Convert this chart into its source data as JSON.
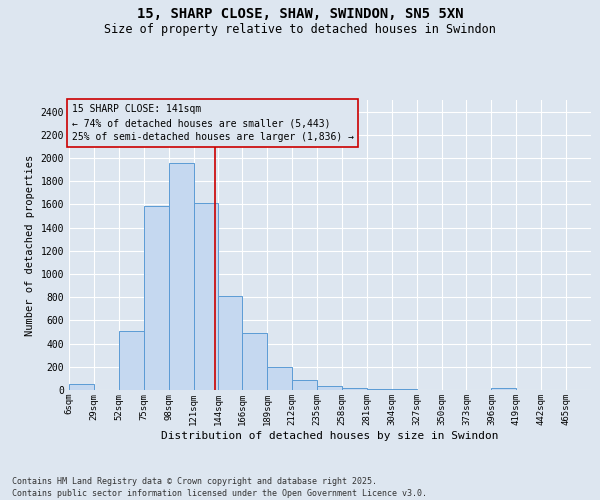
{
  "title": "15, SHARP CLOSE, SHAW, SWINDON, SN5 5XN",
  "subtitle": "Size of property relative to detached houses in Swindon",
  "xlabel": "Distribution of detached houses by size in Swindon",
  "ylabel": "Number of detached properties",
  "footer_line1": "Contains HM Land Registry data © Crown copyright and database right 2025.",
  "footer_line2": "Contains public sector information licensed under the Open Government Licence v3.0.",
  "annotation_line1": "15 SHARP CLOSE: 141sqm",
  "annotation_line2": "← 74% of detached houses are smaller (5,443)",
  "annotation_line3": "25% of semi-detached houses are larger (1,836) →",
  "marker_value": 141,
  "bar_color": "#c5d8f0",
  "bar_edge_color": "#5b9bd5",
  "marker_color": "#cc0000",
  "background_color": "#dde6f0",
  "categories": [
    "6sqm",
    "29sqm",
    "52sqm",
    "75sqm",
    "98sqm",
    "121sqm",
    "144sqm",
    "166sqm",
    "189sqm",
    "212sqm",
    "235sqm",
    "258sqm",
    "281sqm",
    "304sqm",
    "327sqm",
    "350sqm",
    "373sqm",
    "396sqm",
    "419sqm",
    "442sqm",
    "465sqm"
  ],
  "bin_edges": [
    6,
    29,
    52,
    75,
    98,
    121,
    144,
    166,
    189,
    212,
    235,
    258,
    281,
    304,
    327,
    350,
    373,
    396,
    419,
    442,
    465,
    488
  ],
  "values": [
    50,
    0,
    510,
    1590,
    1960,
    1610,
    810,
    490,
    200,
    85,
    35,
    20,
    10,
    5,
    3,
    2,
    0,
    15,
    0,
    0,
    0
  ],
  "ylim": [
    0,
    2500
  ],
  "yticks": [
    0,
    200,
    400,
    600,
    800,
    1000,
    1200,
    1400,
    1600,
    1800,
    2000,
    2200,
    2400
  ]
}
